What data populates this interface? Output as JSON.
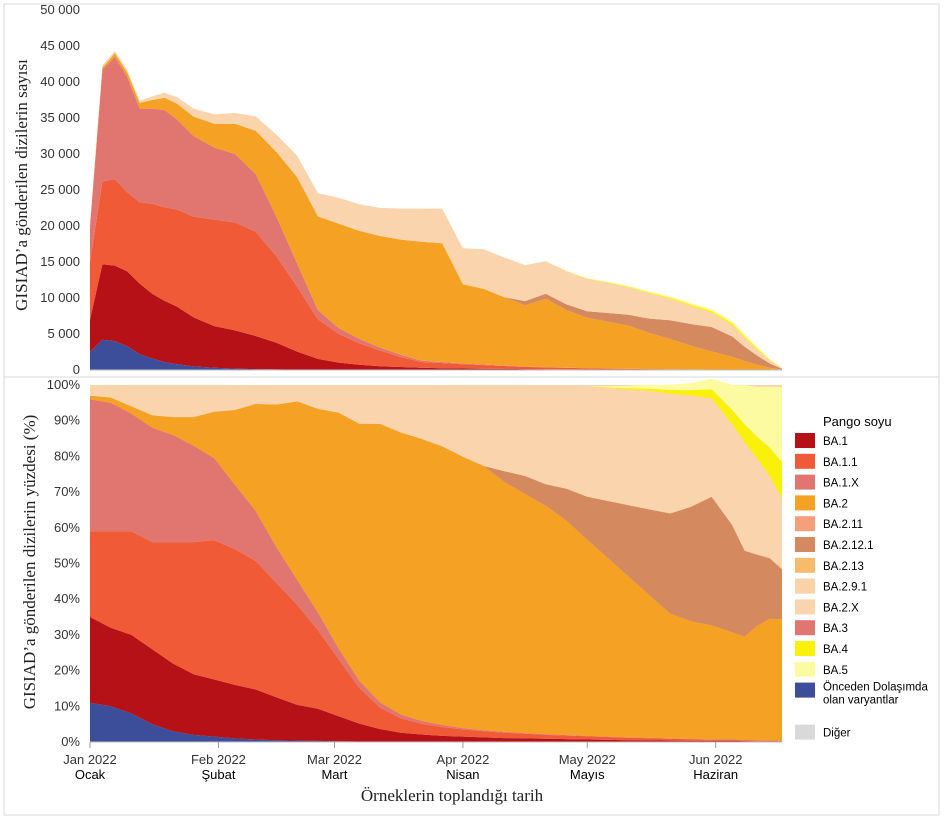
{
  "chart_data": [
    {
      "type": "area",
      "stacked": true,
      "title": "",
      "ylabel": "GISIAD’a gönderilen dizilerin sayısı",
      "xlabel": "",
      "ylim": [
        0,
        50000
      ],
      "yticks": [
        0,
        5000,
        10000,
        15000,
        20000,
        25000,
        30000,
        35000,
        40000,
        45000,
        50000
      ],
      "ytick_labels": [
        "0",
        "5 000",
        "10 000",
        "15 000",
        "20 000",
        "25 000",
        "30 000",
        "35 000",
        "40 000",
        "45 000",
        "50 000"
      ],
      "x_unit": "days since 2022-01-01",
      "xlim": [
        0,
        167
      ],
      "x": [
        0,
        3,
        6,
        9,
        12,
        15,
        18,
        21,
        25,
        30,
        35,
        40,
        45,
        50,
        55,
        60,
        65,
        70,
        75,
        80,
        85,
        90,
        95,
        100,
        105,
        110,
        115,
        120,
        125,
        130,
        135,
        140,
        145,
        150,
        155,
        158,
        161,
        164,
        167
      ],
      "series": [
        {
          "name": "Önceden Dolaşımda olan varyantlar",
          "values": [
            2500,
            4200,
            4000,
            3300,
            2200,
            1600,
            1100,
            800,
            500,
            300,
            200,
            120,
            80,
            60,
            40,
            30,
            20,
            15,
            10,
            10,
            5,
            5,
            5,
            5,
            5,
            5,
            5,
            5,
            5,
            5,
            5,
            5,
            5,
            5,
            5,
            5,
            5,
            5,
            0
          ]
        },
        {
          "name": "BA.1",
          "values": [
            4500,
            10500,
            10500,
            10400,
            9800,
            9000,
            8500,
            8000,
            6800,
            5800,
            5300,
            4600,
            3700,
            2500,
            1500,
            1000,
            700,
            500,
            400,
            300,
            250,
            200,
            180,
            150,
            120,
            100,
            80,
            70,
            60,
            50,
            40,
            30,
            25,
            20,
            10,
            10,
            5,
            5,
            0
          ]
        },
        {
          "name": "BA.1.1",
          "values": [
            8000,
            11500,
            12000,
            11000,
            11300,
            12500,
            13000,
            13500,
            14000,
            14800,
            15000,
            14500,
            12000,
            9000,
            5500,
            4000,
            3000,
            2200,
            1400,
            800,
            700,
            600,
            500,
            400,
            300,
            250,
            200,
            160,
            130,
            100,
            80,
            60,
            50,
            40,
            30,
            20,
            10,
            5,
            0
          ]
        },
        {
          "name": "BA.1.X",
          "values": [
            5000,
            15500,
            17000,
            16000,
            13000,
            13200,
            13500,
            12500,
            11200,
            10000,
            9500,
            8000,
            5500,
            3200,
            1300,
            800,
            600,
            400,
            300,
            200,
            150,
            100,
            80,
            60,
            50,
            40,
            30,
            25,
            20,
            15,
            10,
            5,
            5,
            5,
            5,
            5,
            0,
            0,
            0
          ]
        },
        {
          "name": "BA.2",
          "values": [
            100,
            300,
            500,
            600,
            800,
            1200,
            1700,
            2200,
            2700,
            3300,
            4200,
            6000,
            9000,
            12000,
            13000,
            14500,
            15000,
            15500,
            16000,
            16500,
            16500,
            11000,
            10500,
            9500,
            8500,
            9500,
            8000,
            7000,
            6500,
            6000,
            5000,
            4200,
            3300,
            2500,
            1800,
            1200,
            700,
            300,
            50
          ]
        },
        {
          "name": "BA.2.12.1",
          "values": [
            0,
            0,
            0,
            0,
            0,
            0,
            0,
            0,
            0,
            0,
            0,
            0,
            0,
            0,
            0,
            0,
            0,
            0,
            0,
            0,
            0,
            0,
            0,
            0,
            600,
            700,
            800,
            900,
            1200,
            1500,
            2000,
            2600,
            3000,
            3400,
            2800,
            2000,
            1300,
            600,
            100
          ]
        },
        {
          "name": "BA.2.9.1",
          "values": [
            0,
            0,
            0,
            0,
            0,
            0,
            0,
            0,
            0,
            0,
            0,
            0,
            0,
            0,
            0,
            0,
            0,
            0,
            0,
            0,
            0,
            0,
            0,
            0,
            0,
            0,
            0,
            0,
            0,
            0,
            0,
            0,
            0,
            0,
            0,
            0,
            0,
            0,
            0
          ]
        },
        {
          "name": "BA.2.X",
          "values": [
            200,
            300,
            300,
            300,
            300,
            500,
            700,
            900,
            1100,
            1300,
            1500,
            2000,
            2400,
            3000,
            3200,
            3600,
            3700,
            3900,
            4300,
            4600,
            4800,
            5000,
            5500,
            5500,
            5000,
            4500,
            4600,
            4500,
            4200,
            3800,
            3500,
            3000,
            2500,
            2000,
            1600,
            1200,
            800,
            400,
            100
          ]
        },
        {
          "name": "BA.4",
          "values": [
            0,
            0,
            0,
            0,
            0,
            0,
            0,
            0,
            0,
            0,
            0,
            0,
            0,
            0,
            0,
            0,
            0,
            0,
            0,
            0,
            0,
            0,
            0,
            0,
            0,
            20,
            40,
            60,
            80,
            100,
            130,
            160,
            200,
            240,
            260,
            260,
            200,
            120,
            30
          ]
        },
        {
          "name": "BA.5",
          "values": [
            0,
            0,
            0,
            0,
            0,
            0,
            0,
            0,
            0,
            0,
            0,
            0,
            0,
            0,
            0,
            0,
            0,
            0,
            0,
            0,
            0,
            0,
            0,
            0,
            0,
            20,
            40,
            60,
            80,
            120,
            150,
            180,
            230,
            280,
            300,
            300,
            220,
            120,
            30
          ]
        }
      ]
    },
    {
      "type": "area",
      "stacked": true,
      "normalized": true,
      "title": "",
      "ylabel": "GISIAD’a gönderilen dizilerin yüzdesi (%)",
      "xlabel": "Örneklerin toplandığı tarih",
      "ylim": [
        0,
        100
      ],
      "yticks": [
        0,
        10,
        20,
        30,
        40,
        50,
        60,
        70,
        80,
        90,
        100
      ],
      "ytick_labels": [
        "0%",
        "10%",
        "20%",
        "30%",
        "40%",
        "50%",
        "60%",
        "70%",
        "80%",
        "90%",
        "100%"
      ],
      "x_unit": "days since 2022-01-01",
      "xlim": [
        0,
        167
      ],
      "x": [
        0,
        5,
        10,
        15,
        20,
        25,
        30,
        35,
        40,
        45,
        50,
        55,
        60,
        65,
        70,
        75,
        80,
        85,
        90,
        95,
        100,
        105,
        110,
        115,
        120,
        125,
        130,
        135,
        140,
        145,
        150,
        155,
        158,
        161,
        164,
        167
      ],
      "series": [
        {
          "name": "Önceden Dolaşımda olan varyantlar",
          "values": [
            11,
            10,
            8,
            5,
            3,
            2,
            1.5,
            1,
            0.7,
            0.5,
            0.4,
            0.3,
            0.2,
            0.15,
            0.1,
            0.1,
            0.1,
            0.1,
            0.1,
            0.1,
            0.1,
            0.1,
            0.1,
            0.1,
            0.1,
            0.1,
            0.1,
            0.1,
            0.1,
            0.1,
            0.1,
            0.1,
            0.1,
            0.1,
            0.1,
            0.1
          ]
        },
        {
          "name": "BA.1",
          "values": [
            24,
            22,
            22,
            21,
            19,
            17,
            16,
            15,
            14,
            12,
            10,
            9,
            7,
            5,
            3.5,
            2.5,
            2,
            1.6,
            1.4,
            1.2,
            1,
            0.9,
            0.8,
            0.7,
            0.6,
            0.5,
            0.4,
            0.35,
            0.3,
            0.25,
            0.2,
            0.2,
            0.15,
            0.1,
            0.1,
            0.1
          ]
        },
        {
          "name": "BA.1.1",
          "values": [
            24,
            27,
            29,
            30,
            34,
            37,
            39,
            38,
            36,
            32,
            28,
            22,
            16,
            10,
            6,
            4,
            3,
            2.5,
            2,
            1.7,
            1.5,
            1.3,
            1.1,
            1,
            0.9,
            0.8,
            0.7,
            0.6,
            0.5,
            0.4,
            0.3,
            0.3,
            0.2,
            0.2,
            0.2,
            0.1
          ]
        },
        {
          "name": "BA.1.X",
          "values": [
            37,
            36,
            33,
            32,
            30,
            27,
            23,
            18,
            14,
            10,
            7,
            5,
            3,
            2,
            1.5,
            1.1,
            0.8,
            0.6,
            0.4,
            0.3,
            0.25,
            0.2,
            0.2,
            0.15,
            0.1,
            0.1,
            0.1,
            0.1,
            0.1,
            0.1,
            0.1,
            0.1,
            0.1,
            0.1,
            0.1,
            0.1
          ]
        },
        {
          "name": "BA.2",
          "values": [
            1,
            1.5,
            2,
            3.5,
            5,
            8,
            13,
            21,
            30,
            40,
            50,
            57,
            66,
            72,
            78,
            79,
            79,
            78,
            76,
            74,
            70,
            67,
            64,
            60,
            55,
            50,
            45,
            40,
            35,
            33,
            32,
            30,
            29,
            32,
            34,
            34
          ]
        },
        {
          "name": "BA.2.12.1",
          "values": [
            0,
            0,
            0,
            0,
            0,
            0,
            0,
            0,
            0,
            0,
            0,
            0,
            0,
            0,
            0,
            0,
            0,
            0,
            0,
            0,
            3,
            5,
            6,
            9,
            12,
            16,
            20,
            24,
            28,
            32,
            36,
            30,
            24,
            20,
            17,
            14
          ]
        },
        {
          "name": "BA.2.9.1",
          "values": [
            0,
            0,
            0,
            0,
            0,
            0,
            0,
            0,
            0,
            0,
            0,
            0,
            0,
            0,
            0,
            0,
            0,
            0,
            0,
            0,
            0,
            0,
            0,
            0,
            0,
            0,
            0,
            0,
            0,
            0,
            0,
            0,
            0,
            0,
            0,
            0
          ]
        },
        {
          "name": "BA.2.X",
          "values": [
            2.9,
            3.4,
            5.9,
            8.5,
            8.9,
            8.9,
            7.4,
            6.9,
            5.2,
            5,
            4.5,
            6.3,
            7.5,
            10.65,
            10.8,
            13.2,
            15.1,
            17.2,
            20.1,
            22.6,
            24,
            25.4,
            27.6,
            28.9,
            30.9,
            31.6,
            32.4,
            33.2,
            33.6,
            31.2,
            27.6,
            28.3,
            30.4,
            27,
            23,
            20
          ]
        },
        {
          "name": "BA.4",
          "values": [
            0,
            0,
            0,
            0,
            0,
            0,
            0,
            0,
            0,
            0,
            0,
            0,
            0,
            0,
            0,
            0,
            0,
            0,
            0,
            0,
            0,
            0,
            0,
            0,
            0,
            0.2,
            0.4,
            0.6,
            1,
            1.5,
            2.5,
            4,
            5,
            6,
            8,
            10
          ]
        },
        {
          "name": "BA.5",
          "values": [
            0,
            0,
            0,
            0,
            0,
            0,
            0,
            0,
            0,
            0,
            0,
            0,
            0,
            0,
            0,
            0,
            0,
            0,
            0,
            0,
            0,
            0,
            0,
            0,
            0,
            0.3,
            0.7,
            1.1,
            1.5,
            2,
            3,
            7,
            11,
            14,
            17,
            21
          ]
        }
      ]
    }
  ],
  "x_axis": {
    "ticks": [
      {
        "day": 0,
        "label": "Jan 2022",
        "tr": "Ocak"
      },
      {
        "day": 31,
        "label": "Feb 2022",
        "tr": "Şubat"
      },
      {
        "day": 59,
        "label": "Mar 2022",
        "tr": "Mart"
      },
      {
        "day": 90,
        "label": "Apr 2022",
        "tr": "Nisan"
      },
      {
        "day": 120,
        "label": "May 2022",
        "tr": "Mayıs"
      },
      {
        "day": 151,
        "label": "Jun 2022",
        "tr": "Haziran"
      }
    ]
  },
  "legend": {
    "title": "Pango soyu",
    "items": [
      {
        "label": "BA.1",
        "color": "#b51117"
      },
      {
        "label": "BA.1.1",
        "color": "#f05a36"
      },
      {
        "label": "BA.1.X",
        "color": "#e17670"
      },
      {
        "label": "BA.2",
        "color": "#f4a124"
      },
      {
        "label": "BA.2.11",
        "color": "#f5a07b"
      },
      {
        "label": "BA.2.12.1",
        "color": "#d4895f"
      },
      {
        "label": "BA.2.13",
        "color": "#f8bb6c"
      },
      {
        "label": "BA.2.9.1",
        "color": "#fbd1a6"
      },
      {
        "label": "BA.2.X",
        "color": "#f9d4ad"
      },
      {
        "label": "BA.3",
        "color": "#e17670"
      },
      {
        "label": "BA.4",
        "color": "#f9f10a"
      },
      {
        "label": "BA.5",
        "color": "#fcfba2"
      },
      {
        "label": "Önceden Dolaşımda olan varyantlar",
        "color": "#3c4d9a"
      },
      {
        "label": "Diğer",
        "color": "#d9d9d9"
      }
    ]
  },
  "colors": {
    "Önceden Dolaşımda olan varyantlar": "#3c4d9a",
    "BA.1": "#b51117",
    "BA.1.1": "#f05a36",
    "BA.1.X": "#e17670",
    "BA.2": "#f4a124",
    "BA.2.12.1": "#d4895f",
    "BA.2.9.1": "#fbd1a6",
    "BA.2.X": "#f9d4ad",
    "BA.4": "#f9f10a",
    "BA.5": "#fcfba2"
  }
}
